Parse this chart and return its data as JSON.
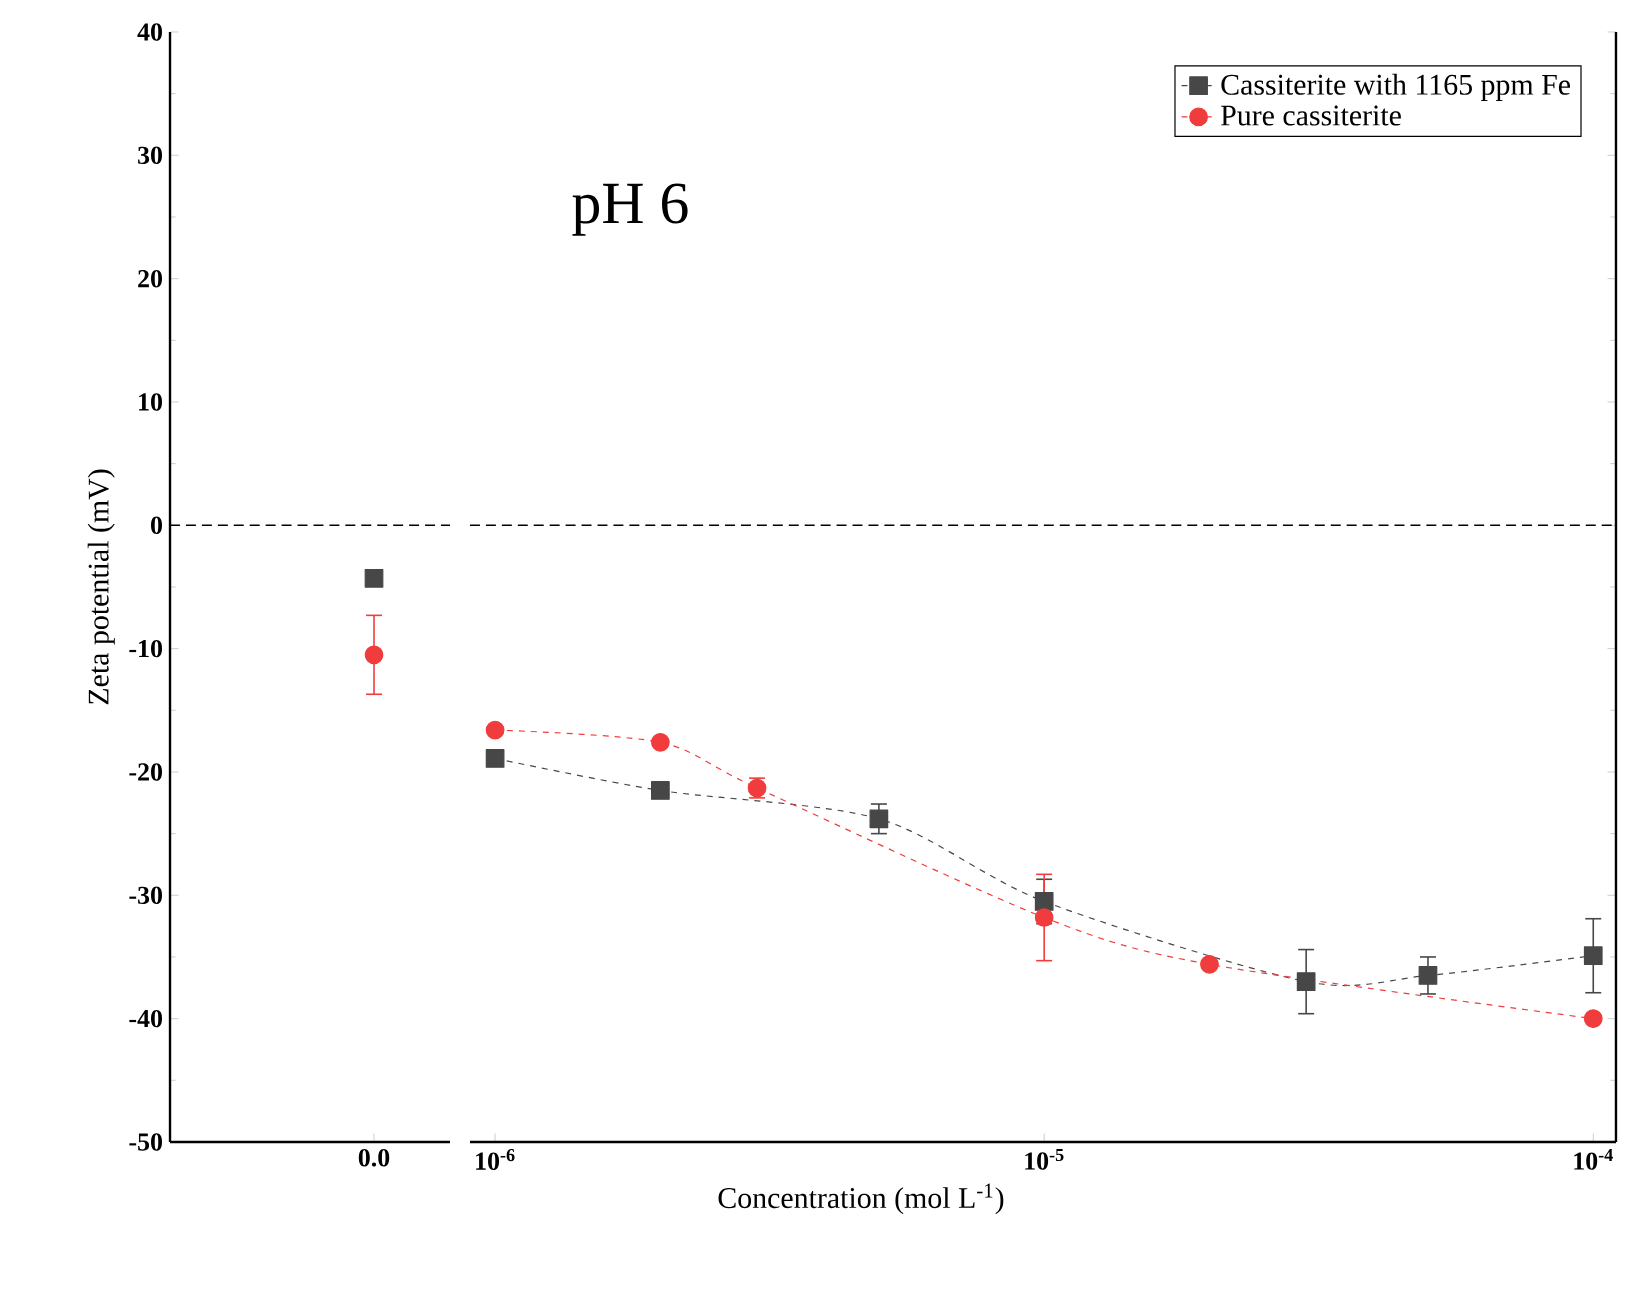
{
  "chart_data": [
    {
      "type": "line",
      "categories": [
        "0.0"
      ],
      "ylabel": "Zeta potential (mV)",
      "ylim": [
        -50,
        40
      ],
      "yticks": [
        -50,
        -40,
        -30,
        -20,
        -10,
        0,
        10,
        20,
        30,
        40
      ],
      "line_style": "dashed",
      "grid": false,
      "ref_lines": [
        {
          "axis": "y",
          "value": 0,
          "color": "#000000",
          "line_style": "dashed"
        }
      ],
      "series": [
        {
          "color": "#474747",
          "marker": "square",
          "values": [
            -4.3
          ],
          "errors": [
            null
          ]
        },
        {
          "color": "#f03c3c",
          "marker": "circle",
          "values": [
            -10.5
          ],
          "errors": [
            3.2
          ]
        }
      ]
    },
    {
      "type": "line",
      "log": "x",
      "xlim": [
        9e-07,
        0.00011
      ],
      "xticks": [
        {
          "value": 1e-06,
          "label": "10$^{-6}$"
        },
        {
          "value": 1e-05,
          "label": "10$^{-5}$"
        },
        {
          "value": 0.0001,
          "label": "10$^{-4}$"
        }
      ],
      "xlabel": "Concentration (mol L$^{-1}$)",
      "ylim": [
        -50,
        40
      ],
      "yticks": [
        -50,
        -40,
        -30,
        -20,
        -10,
        0,
        10,
        20,
        30,
        40
      ],
      "tick_labels": "x",
      "legend": "top right",
      "line_style": "dashed",
      "grid": false,
      "annotations": [
        "pH 6"
      ],
      "ref_lines": [
        {
          "axis": "y",
          "value": 0,
          "color": "#000000",
          "line_style": "dashed"
        }
      ],
      "series": [
        {
          "name": "Cassiterite with 1165 ppm Fe",
          "color": "#474747",
          "marker": "square",
          "x": [
            1e-06,
            2e-06,
            5e-06,
            1e-05,
            3e-05,
            5e-05,
            0.0001
          ],
          "values": [
            -18.9,
            -21.5,
            -23.8,
            -30.5,
            -37.0,
            -36.5,
            -34.9
          ],
          "errors": [
            null,
            null,
            1.2,
            1.8,
            2.6,
            1.5,
            3.0
          ]
        },
        {
          "name": "Pure cassiterite",
          "color": "#f03c3c",
          "marker": "circle",
          "x": [
            1e-06,
            2e-06,
            3e-06,
            1e-05,
            2e-05,
            0.0001
          ],
          "values": [
            -16.6,
            -17.6,
            -21.3,
            -31.8,
            -35.6,
            -40.0
          ],
          "errors": [
            null,
            null,
            0.8,
            3.5,
            null,
            null
          ]
        }
      ]
    }
  ]
}
